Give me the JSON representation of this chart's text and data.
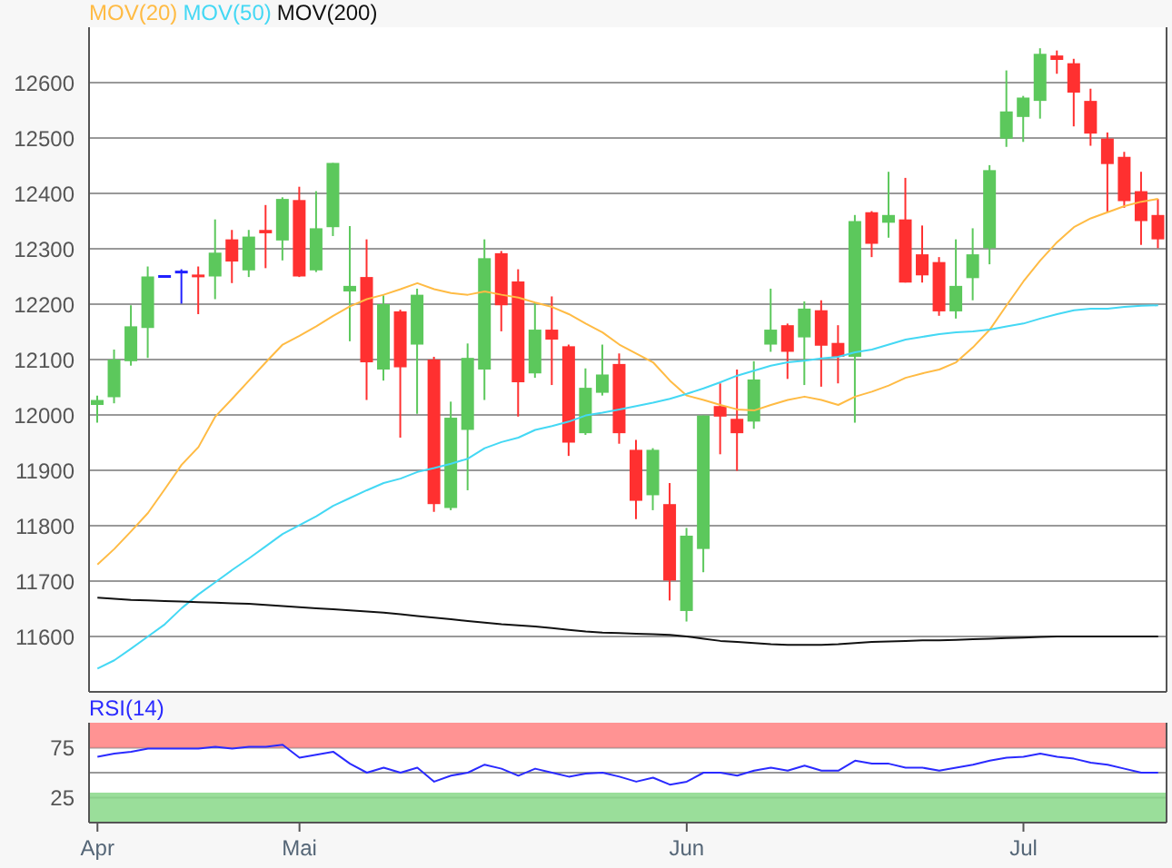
{
  "chart_data": [
    {
      "type": "candlestick",
      "categories": [
        null,
        null,
        null,
        null,
        null,
        null,
        null,
        null,
        null,
        null,
        null,
        null,
        null,
        null,
        null,
        null,
        null,
        null,
        null,
        null,
        null,
        null,
        null,
        null,
        null,
        null,
        null,
        null,
        null,
        null,
        null,
        null,
        null,
        null,
        null,
        null,
        null,
        null,
        null,
        null,
        null,
        null,
        null,
        null,
        null,
        null,
        null,
        null,
        null,
        null,
        null,
        null,
        null,
        null,
        null,
        null,
        null,
        null,
        null,
        null,
        null,
        null,
        null,
        null
      ],
      "ohlc": [
        [
          12018,
          12035,
          11986,
          12027
        ],
        [
          12032,
          12118,
          12021,
          12100
        ],
        [
          12097,
          12198,
          12089,
          12160
        ],
        [
          12157,
          12268,
          12103,
          12250
        ],
        [
          12250,
          12250,
          12250,
          12250
        ],
        [
          12258,
          12263,
          12201,
          12258
        ],
        [
          12252,
          12268,
          12182,
          12250
        ],
        [
          12250,
          12353,
          12209,
          12293
        ],
        [
          12317,
          12334,
          12238,
          12277
        ],
        [
          12261,
          12334,
          12249,
          12322
        ],
        [
          12334,
          12379,
          12265,
          12328
        ],
        [
          12315,
          12393,
          12279,
          12390
        ],
        [
          12388,
          12412,
          12249,
          12250
        ],
        [
          12261,
          12404,
          12258,
          12337
        ],
        [
          12339,
          12455,
          12323,
          12455
        ],
        [
          12223,
          12341,
          12133,
          12233
        ],
        [
          12249,
          12317,
          12027,
          12095
        ],
        [
          12082,
          12216,
          12062,
          12200
        ],
        [
          12187,
          12190,
          11959,
          12086
        ],
        [
          12127,
          12228,
          12002,
          12217
        ],
        [
          12100,
          12105,
          11825,
          11839
        ],
        [
          11832,
          12024,
          11828,
          11995
        ],
        [
          11973,
          12129,
          11864,
          12103
        ],
        [
          12082,
          12317,
          12027,
          12283
        ],
        [
          12292,
          12296,
          12151,
          12198
        ],
        [
          12241,
          12263,
          11997,
          12059
        ],
        [
          12075,
          12203,
          12067,
          12154
        ],
        [
          12154,
          12214,
          12054,
          12136
        ],
        [
          12124,
          12127,
          11926,
          11950
        ],
        [
          11967,
          12084,
          11964,
          12049
        ],
        [
          12040,
          12127,
          12035,
          12073
        ],
        [
          12092,
          12111,
          11948,
          11967
        ],
        [
          11937,
          11955,
          11812,
          11845
        ],
        [
          11855,
          11940,
          11828,
          11937
        ],
        [
          11839,
          11877,
          11665,
          11701
        ],
        [
          11646,
          11796,
          11627,
          11782
        ],
        [
          11758,
          11999,
          11716,
          11999
        ],
        [
          12016,
          12057,
          11929,
          11997
        ],
        [
          11993,
          12082,
          11899,
          11967
        ],
        [
          11988,
          12097,
          11975,
          12064
        ],
        [
          12127,
          12228,
          12114,
          12154
        ],
        [
          12162,
          12165,
          12065,
          12114
        ],
        [
          12140,
          12205,
          12054,
          12192
        ],
        [
          12189,
          12207,
          12051,
          12125
        ],
        [
          12130,
          12162,
          12057,
          12105
        ],
        [
          12105,
          12361,
          11986,
          12350
        ],
        [
          12366,
          12368,
          12285,
          12309
        ],
        [
          12347,
          12439,
          12320,
          12361
        ],
        [
          12353,
          12428,
          12239,
          12239
        ],
        [
          12290,
          12342,
          12239,
          12252
        ],
        [
          12276,
          12285,
          12179,
          12187
        ],
        [
          12187,
          12317,
          12174,
          12233
        ],
        [
          12247,
          12337,
          12207,
          12290
        ],
        [
          12301,
          12451,
          12272,
          12442
        ],
        [
          12499,
          12622,
          12484,
          12548
        ],
        [
          12538,
          12576,
          12493,
          12573
        ],
        [
          12567,
          12662,
          12535,
          12652
        ],
        [
          12649,
          12658,
          12616,
          12641
        ],
        [
          12635,
          12643,
          12521,
          12582
        ],
        [
          12567,
          12589,
          12486,
          12508
        ],
        [
          12499,
          12510,
          12366,
          12453
        ],
        [
          12466,
          12475,
          12374,
          12386
        ],
        [
          12404,
          12439,
          12307,
          12350
        ],
        [
          12361,
          12390,
          12301,
          12317
        ]
      ],
      "colors": [
        "#5cc85c",
        "#5cc85c",
        "#5cc85c",
        "#5cc85c",
        "#2020ff",
        "#2020ff",
        "#ff3030",
        "#5cc85c",
        "#ff3030",
        "#5cc85c",
        "#ff3030",
        "#5cc85c",
        "#ff3030",
        "#5cc85c",
        "#5cc85c",
        "#5cc85c",
        "#ff3030",
        "#5cc85c",
        "#ff3030",
        "#5cc85c",
        "#ff3030",
        "#5cc85c",
        "#5cc85c",
        "#5cc85c",
        "#ff3030",
        "#ff3030",
        "#5cc85c",
        "#ff3030",
        "#ff3030",
        "#5cc85c",
        "#5cc85c",
        "#ff3030",
        "#ff3030",
        "#5cc85c",
        "#ff3030",
        "#5cc85c",
        "#5cc85c",
        "#ff3030",
        "#ff3030",
        "#5cc85c",
        "#5cc85c",
        "#ff3030",
        "#5cc85c",
        "#ff3030",
        "#ff3030",
        "#5cc85c",
        "#ff3030",
        "#5cc85c",
        "#ff3030",
        "#ff3030",
        "#ff3030",
        "#5cc85c",
        "#5cc85c",
        "#5cc85c",
        "#5cc85c",
        "#5cc85c",
        "#5cc85c",
        "#ff3030",
        "#ff3030",
        "#ff3030",
        "#ff3030",
        "#ff3030",
        "#ff3030",
        "#ff3030"
      ],
      "series": [
        {
          "name": "MOV(20)",
          "type": "line",
          "color": "#ffbb44",
          "values": [
            11730,
            11758,
            11790,
            11823,
            11866,
            11910,
            11942,
            11997,
            12029,
            12062,
            12095,
            12127,
            12143,
            12160,
            12179,
            12196,
            12209,
            12217,
            12227,
            12238,
            12227,
            12220,
            12217,
            12223,
            12217,
            12212,
            12203,
            12195,
            12182,
            12165,
            12149,
            12127,
            12111,
            12095,
            12062,
            12035,
            12027,
            12018,
            12010,
            12008,
            12018,
            12027,
            12033,
            12027,
            12018,
            12033,
            12042,
            12053,
            12067,
            12075,
            12082,
            12095,
            12122,
            12154,
            12198,
            12241,
            12279,
            12312,
            12339,
            12355,
            12366,
            12377,
            12385,
            12390
          ]
        },
        {
          "name": "MOV(50)",
          "type": "line",
          "color": "#44d8f4",
          "values": [
            11542,
            11557,
            11578,
            11600,
            11622,
            11651,
            11676,
            11698,
            11720,
            11741,
            11763,
            11785,
            11801,
            11817,
            11836,
            11850,
            11864,
            11877,
            11885,
            11897,
            11904,
            11912,
            11921,
            11940,
            11951,
            11959,
            11973,
            11980,
            11988,
            11999,
            12004,
            12010,
            12016,
            12022,
            12029,
            12038,
            12048,
            12059,
            12071,
            12080,
            12089,
            12095,
            12098,
            12102,
            12105,
            12113,
            12118,
            12127,
            12136,
            12141,
            12146,
            12149,
            12151,
            12154,
            12160,
            12165,
            12174,
            12182,
            12189,
            12192,
            12192,
            12195,
            12197,
            12198
          ]
        },
        {
          "name": "MOV(200)",
          "type": "line",
          "color": "#111111",
          "values": [
            11670,
            11668,
            11666,
            11665,
            11664,
            11663,
            11662,
            11661,
            11660,
            11659,
            11657,
            11655,
            11653,
            11651,
            11649,
            11647,
            11645,
            11643,
            11640,
            11637,
            11634,
            11631,
            11628,
            11625,
            11622,
            11620,
            11618,
            11615,
            11612,
            11609,
            11607,
            11606,
            11605,
            11604,
            11603,
            11600,
            11596,
            11592,
            11590,
            11588,
            11586,
            11585,
            11585,
            11585,
            11586,
            11588,
            11590,
            11591,
            11592,
            11593,
            11593,
            11594,
            11595,
            11596,
            11597,
            11598,
            11599,
            11600,
            11600,
            11600,
            11600,
            11600,
            11600,
            11600
          ]
        }
      ],
      "ylim": [
        11500,
        12700
      ],
      "yticks": [
        11600,
        11700,
        11800,
        11900,
        12000,
        12100,
        12200,
        12300,
        12400,
        12500,
        12600
      ],
      "grid": "y",
      "legend": "top left",
      "tick_labels": "y"
    },
    {
      "type": "line",
      "categories": [
        "Apr",
        null,
        null,
        null,
        null,
        null,
        null,
        null,
        null,
        null,
        null,
        null,
        "Mai",
        null,
        null,
        null,
        null,
        null,
        null,
        null,
        null,
        null,
        null,
        null,
        null,
        null,
        null,
        null,
        null,
        null,
        null,
        null,
        null,
        null,
        null,
        "Jun",
        null,
        null,
        null,
        null,
        null,
        null,
        null,
        null,
        null,
        null,
        null,
        null,
        null,
        null,
        null,
        null,
        null,
        null,
        null,
        "Jul",
        null,
        null,
        null,
        null,
        null,
        null,
        null,
        null
      ],
      "series": [
        {
          "name": "RSI(14)",
          "color": "#2a2aff",
          "values": [
            66,
            69,
            71,
            74,
            74,
            74,
            74,
            76,
            74,
            76,
            76,
            78,
            65,
            68,
            71,
            59,
            50,
            55,
            50,
            55,
            41,
            47,
            50,
            58,
            54,
            47,
            54,
            50,
            46,
            49,
            50,
            46,
            41,
            45,
            38,
            41,
            50,
            50,
            47,
            52,
            55,
            52,
            57,
            52,
            52,
            62,
            59,
            59,
            55,
            55,
            52,
            55,
            58,
            62,
            65,
            66,
            69,
            66,
            64,
            60,
            58,
            54,
            50,
            50
          ]
        }
      ],
      "ylim": [
        0,
        100
      ],
      "yticks": [
        25,
        75
      ],
      "grid": "y",
      "bands": [
        {
          "axis": "y",
          "from": 75,
          "to": 100,
          "color": "#ff8080"
        },
        {
          "axis": "y",
          "from": 0,
          "to": 30,
          "color": "#88d888"
        }
      ],
      "ref_lines": [
        {
          "axis": "y",
          "value": 50,
          "color": "#999999"
        }
      ],
      "legend": "top left"
    }
  ]
}
